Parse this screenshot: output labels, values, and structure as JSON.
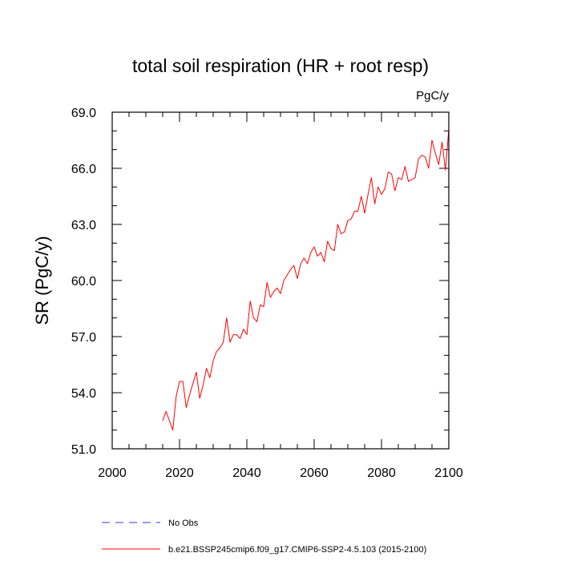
{
  "chart_data": {
    "type": "line",
    "title": "total soil respiration (HR + root resp)",
    "units": "PgC/y",
    "xlabel": "",
    "ylabel": "SR  (PgC/y)",
    "xlim": [
      2000,
      2100
    ],
    "ylim": [
      51.0,
      69.0
    ],
    "x_ticks": [
      2000,
      2020,
      2040,
      2060,
      2080,
      2100
    ],
    "x_tick_labels": [
      "2000",
      "2020",
      "2040",
      "2060",
      "2080",
      "2100"
    ],
    "y_ticks": [
      51.0,
      54.0,
      57.0,
      60.0,
      63.0,
      66.0,
      69.0
    ],
    "y_tick_labels": [
      "51.0",
      "54.0",
      "57.0",
      "60.0",
      "63.0",
      "66.0",
      "69.0"
    ],
    "legend": [
      {
        "label": "No Obs",
        "color": "#0000ff",
        "style": "dashed"
      },
      {
        "label": "b.e21.BSSP245cmip6.f09_g17.CMIP6-SSP2-4.5.103 (2015-2100)",
        "color": "#ff0000",
        "style": "solid"
      }
    ],
    "series": [
      {
        "name": "b.e21.BSSP245cmip6.f09_g17.CMIP6-SSP2-4.5.103 (2015-2100)",
        "color": "#ff0000",
        "x": [
          2015,
          2016,
          2017,
          2018,
          2019,
          2020,
          2021,
          2022,
          2023,
          2024,
          2025,
          2026,
          2027,
          2028,
          2029,
          2030,
          2031,
          2032,
          2033,
          2034,
          2035,
          2036,
          2037,
          2038,
          2039,
          2040,
          2041,
          2042,
          2043,
          2044,
          2045,
          2046,
          2047,
          2048,
          2049,
          2050,
          2051,
          2052,
          2053,
          2054,
          2055,
          2056,
          2057,
          2058,
          2059,
          2060,
          2061,
          2062,
          2063,
          2064,
          2065,
          2066,
          2067,
          2068,
          2069,
          2070,
          2071,
          2072,
          2073,
          2074,
          2075,
          2076,
          2077,
          2078,
          2079,
          2080,
          2081,
          2082,
          2083,
          2084,
          2085,
          2086,
          2087,
          2088,
          2089,
          2090,
          2091,
          2092,
          2093,
          2094,
          2095,
          2096,
          2097,
          2098,
          2099,
          2100
        ],
        "values": [
          52.5,
          53.0,
          52.5,
          52.0,
          53.8,
          54.6,
          54.6,
          53.2,
          53.9,
          54.5,
          55.1,
          53.7,
          54.4,
          55.3,
          54.8,
          55.7,
          56.2,
          56.4,
          56.7,
          58.0,
          56.7,
          57.1,
          57.1,
          56.9,
          57.4,
          57.1,
          58.9,
          58.0,
          57.8,
          58.7,
          58.6,
          59.9,
          59.1,
          59.4,
          59.6,
          59.3,
          60.0,
          60.3,
          60.6,
          60.8,
          60.1,
          60.9,
          61.2,
          60.9,
          61.5,
          61.8,
          61.3,
          61.5,
          61.0,
          62.1,
          61.7,
          61.6,
          63.0,
          62.5,
          62.6,
          63.2,
          63.3,
          63.7,
          63.7,
          64.5,
          63.6,
          64.6,
          65.5,
          64.1,
          65.0,
          64.6,
          64.9,
          65.8,
          65.7,
          64.8,
          65.5,
          65.4,
          66.1,
          65.3,
          65.4,
          65.5,
          66.5,
          66.7,
          66.6,
          66.0,
          67.5,
          66.8,
          66.2,
          67.4,
          65.9,
          68.1
        ]
      }
    ]
  }
}
